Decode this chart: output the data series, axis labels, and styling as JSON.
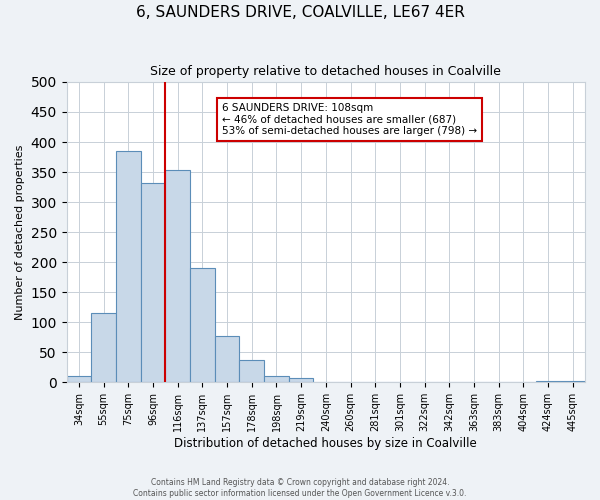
{
  "title": "6, SAUNDERS DRIVE, COALVILLE, LE67 4ER",
  "subtitle": "Size of property relative to detached houses in Coalville",
  "xlabel": "Distribution of detached houses by size in Coalville",
  "ylabel": "Number of detached properties",
  "bar_labels": [
    "34sqm",
    "55sqm",
    "75sqm",
    "96sqm",
    "116sqm",
    "137sqm",
    "157sqm",
    "178sqm",
    "198sqm",
    "219sqm",
    "240sqm",
    "260sqm",
    "281sqm",
    "301sqm",
    "322sqm",
    "342sqm",
    "363sqm",
    "383sqm",
    "404sqm",
    "424sqm",
    "445sqm"
  ],
  "bar_values": [
    10,
    115,
    385,
    332,
    353,
    190,
    77,
    38,
    11,
    7,
    0,
    0,
    0,
    0,
    0,
    0,
    0,
    0,
    0,
    2,
    2
  ],
  "bar_color": "#c8d8e8",
  "bar_edge_color": "#5b8db8",
  "vline_color": "#cc0000",
  "annotation_title": "6 SAUNDERS DRIVE: 108sqm",
  "annotation_line1": "← 46% of detached houses are smaller (687)",
  "annotation_line2": "53% of semi-detached houses are larger (798) →",
  "annotation_box_color": "#cc0000",
  "ylim": [
    0,
    500
  ],
  "footer1": "Contains HM Land Registry data © Crown copyright and database right 2024.",
  "footer2": "Contains public sector information licensed under the Open Government Licence v.3.0.",
  "background_color": "#eef2f6",
  "plot_bg_color": "#ffffff",
  "grid_color": "#c8d0d8"
}
